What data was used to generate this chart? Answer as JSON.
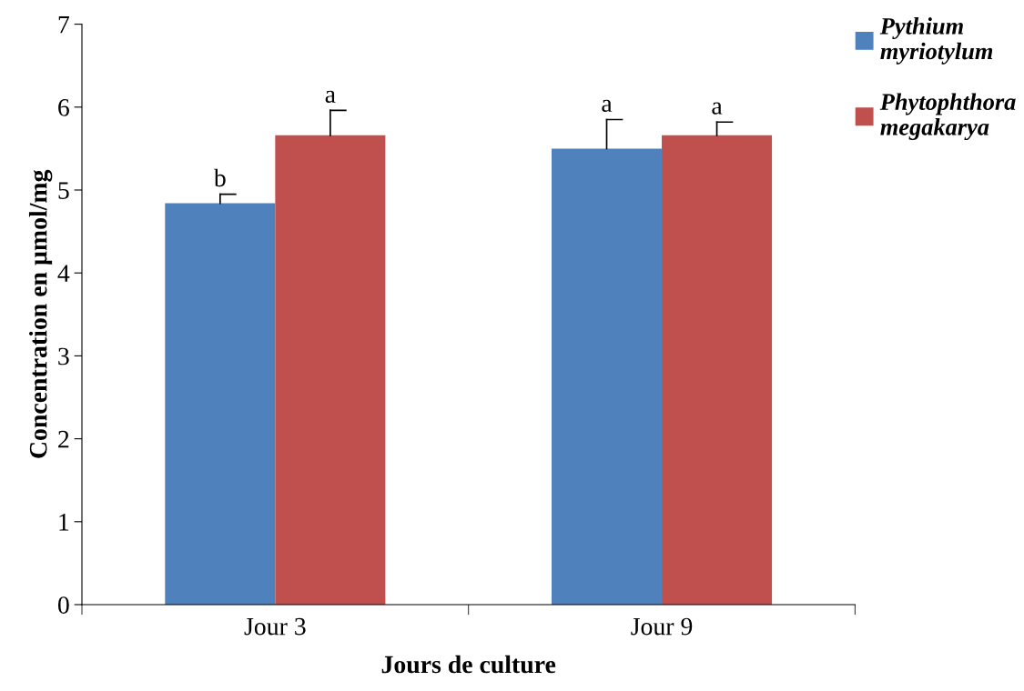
{
  "chart_data": {
    "type": "bar",
    "xlabel": "Jours de culture",
    "ylabel": "Concentration en µmol/mg",
    "categories": [
      "Jour 3",
      "Jour 9"
    ],
    "series": [
      {
        "name": "Pythium myriotylum",
        "color": "#4f81bd",
        "values": [
          4.84,
          5.5
        ],
        "errors": [
          [
            4.84,
            4.95
          ],
          [
            5.5,
            5.85
          ]
        ],
        "value_labels": [
          "b",
          "a"
        ]
      },
      {
        "name": "Phytophthora megakarya",
        "color": "#c0504d",
        "values": [
          5.66,
          5.66
        ],
        "errors": [
          [
            5.66,
            5.96
          ],
          [
            5.66,
            5.82
          ]
        ],
        "value_labels": [
          "a",
          "a"
        ]
      }
    ],
    "ylim": [
      0,
      7
    ],
    "yticks": [
      0,
      1,
      2,
      3,
      4,
      5,
      6,
      7
    ],
    "grid": false,
    "legend": "top right"
  }
}
